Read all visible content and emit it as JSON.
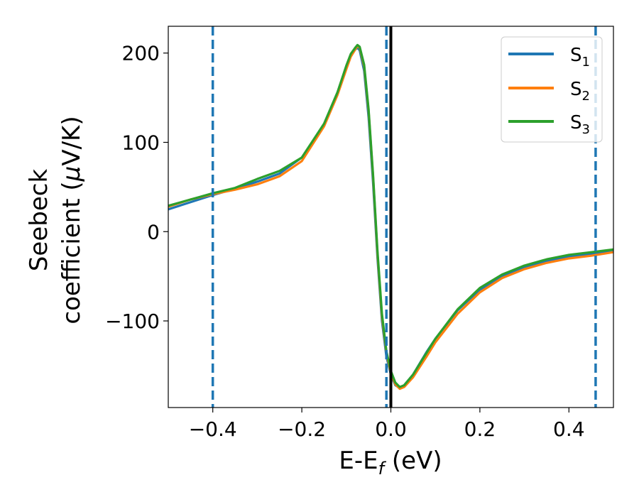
{
  "chart_data": {
    "type": "line",
    "title": "",
    "xlabel": "E-E_f (eV)",
    "ylabel_lines": [
      "Seebeck",
      "coefficient  (μV/K)"
    ],
    "xlim": [
      -0.5,
      0.5
    ],
    "ylim": [
      -197,
      230
    ],
    "xticks": [
      -0.4,
      -0.2,
      0.0,
      0.2,
      0.4
    ],
    "xtick_labels": [
      "−0.4",
      "−0.2",
      "0.0",
      "0.2",
      "0.4"
    ],
    "yticks": [
      200,
      100,
      0,
      -100
    ],
    "ytick_labels": [
      "200",
      "100",
      "0",
      "−100"
    ],
    "grid": false,
    "legend_position": "top-right",
    "vertical_lines": [
      {
        "x": -0.4,
        "style": "dashed",
        "color": "#1f77b4"
      },
      {
        "x": -0.01,
        "style": "dashed",
        "color": "#1f77b4"
      },
      {
        "x": 0.0,
        "style": "solid",
        "color": "#000000"
      },
      {
        "x": 0.46,
        "style": "dashed",
        "color": "#1f77b4"
      }
    ],
    "series": [
      {
        "name": "S1",
        "color": "#1f77b4",
        "x": [
          -0.5,
          -0.45,
          -0.4,
          -0.35,
          -0.3,
          -0.25,
          -0.2,
          -0.15,
          -0.12,
          -0.1,
          -0.09,
          -0.08,
          -0.075,
          -0.07,
          -0.06,
          -0.05,
          -0.04,
          -0.03,
          -0.02,
          -0.01,
          0.0,
          0.01,
          0.02,
          0.03,
          0.05,
          0.08,
          0.1,
          0.15,
          0.2,
          0.25,
          0.3,
          0.35,
          0.4,
          0.45,
          0.5
        ],
        "y": [
          25,
          33,
          41,
          48,
          56,
          65,
          83,
          120,
          155,
          184,
          197,
          204,
          206,
          203,
          180,
          128,
          55,
          -30,
          -100,
          -140,
          -160,
          -172,
          -175,
          -172,
          -160,
          -135,
          -120,
          -88,
          -65,
          -50,
          -40,
          -33,
          -28,
          -25,
          -21
        ]
      },
      {
        "name": "S2",
        "color": "#ff7f0e",
        "x": [
          -0.5,
          -0.45,
          -0.4,
          -0.35,
          -0.3,
          -0.25,
          -0.2,
          -0.15,
          -0.12,
          -0.1,
          -0.09,
          -0.08,
          -0.075,
          -0.07,
          -0.06,
          -0.05,
          -0.04,
          -0.03,
          -0.02,
          -0.01,
          0.0,
          0.01,
          0.02,
          0.03,
          0.05,
          0.08,
          0.1,
          0.15,
          0.2,
          0.25,
          0.3,
          0.35,
          0.4,
          0.45,
          0.5
        ],
        "y": [
          28,
          36,
          42,
          47,
          53,
          62,
          79,
          118,
          153,
          182,
          196,
          204,
          208,
          206,
          185,
          135,
          62,
          -25,
          -95,
          -136,
          -158,
          -171,
          -176,
          -174,
          -163,
          -140,
          -124,
          -92,
          -68,
          -52,
          -42,
          -35,
          -30,
          -27,
          -23
        ]
      },
      {
        "name": "S3",
        "color": "#2ca02c",
        "x": [
          -0.5,
          -0.45,
          -0.4,
          -0.35,
          -0.3,
          -0.25,
          -0.2,
          -0.15,
          -0.12,
          -0.1,
          -0.09,
          -0.08,
          -0.075,
          -0.07,
          -0.06,
          -0.05,
          -0.04,
          -0.03,
          -0.02,
          -0.01,
          0.0,
          0.01,
          0.02,
          0.03,
          0.05,
          0.08,
          0.1,
          0.15,
          0.2,
          0.25,
          0.3,
          0.35,
          0.4,
          0.45,
          0.5
        ],
        "y": [
          29,
          36,
          43,
          49,
          59,
          68,
          83,
          121,
          156,
          186,
          199,
          206,
          209,
          207,
          187,
          137,
          64,
          -22,
          -92,
          -134,
          -156,
          -169,
          -174,
          -172,
          -160,
          -136,
          -120,
          -87,
          -63,
          -48,
          -38,
          -31,
          -26,
          -23,
          -20
        ]
      }
    ]
  }
}
